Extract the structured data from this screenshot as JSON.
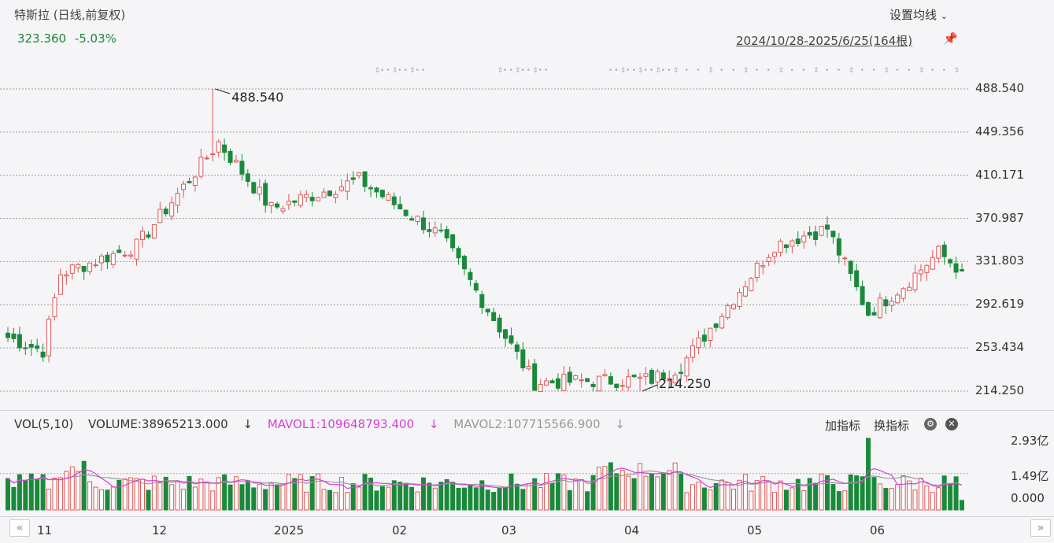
{
  "header": {
    "title": "特斯拉 (日线,前复权)",
    "price": "323.360",
    "change_pct": "-5.03%",
    "ma_settings_label": "设置均线",
    "date_range": "2024/10/28-2025/6/25(164根)",
    "dropdown_icon": "chevron-down-icon",
    "pin_icon": "pin-icon"
  },
  "colors": {
    "up": "#e05555",
    "down": "#1a8a3a",
    "ma1": "#d63fd6",
    "ma2": "#999999"
  },
  "y_axis": {
    "labels": [
      "488.540",
      "449.356",
      "410.171",
      "370.987",
      "331.803",
      "292.619",
      "253.434",
      "214.250"
    ]
  },
  "annotations": {
    "high_label": "488.540",
    "low_label": "214.250"
  },
  "volume": {
    "title": "VOL(5,10)",
    "volume_label": "VOLUME:38965213.000",
    "mavol1_label": "MAVOL1:109648793.400",
    "mavol2_label": "MAVOL2:107715566.900",
    "add_indicator": "加指标",
    "switch_indicator": "换指标",
    "y_labels": [
      "2.93亿",
      "1.49亿",
      "0.000"
    ]
  },
  "x_axis": {
    "labels": [
      "11",
      "12",
      "2025",
      "02",
      "03",
      "04",
      "05",
      "06"
    ]
  },
  "chart_data": {
    "type": "candlestick",
    "title": "特斯拉 (日线,前复权)",
    "ylim": [
      214.25,
      488.54
    ],
    "high": 488.54,
    "low": 214.25,
    "last_close": 323.36,
    "series": [
      {
        "name": "price",
        "ohlc_anchors": [
          {
            "date": "2024-10-28",
            "close": 263
          },
          {
            "date": "2024-11-05",
            "close": 251
          },
          {
            "date": "2024-11-08",
            "close": 321
          },
          {
            "date": "2024-11-29",
            "close": 346
          },
          {
            "date": "2024-12-18",
            "close": 440
          },
          {
            "date": "2024-12-17",
            "high": 488.54
          },
          {
            "date": "2025-01-02",
            "close": 380
          },
          {
            "date": "2025-01-24",
            "close": 406
          },
          {
            "date": "2025-02-14",
            "close": 355
          },
          {
            "date": "2025-03-10",
            "close": 222
          },
          {
            "date": "2025-04-07",
            "low": 214.25
          },
          {
            "date": "2025-04-22",
            "close": 237
          },
          {
            "date": "2025-05-14",
            "close": 347
          },
          {
            "date": "2025-05-28",
            "close": 362
          },
          {
            "date": "2025-06-05",
            "close": 285
          },
          {
            "date": "2025-06-25",
            "close": 323.36
          }
        ]
      }
    ]
  }
}
